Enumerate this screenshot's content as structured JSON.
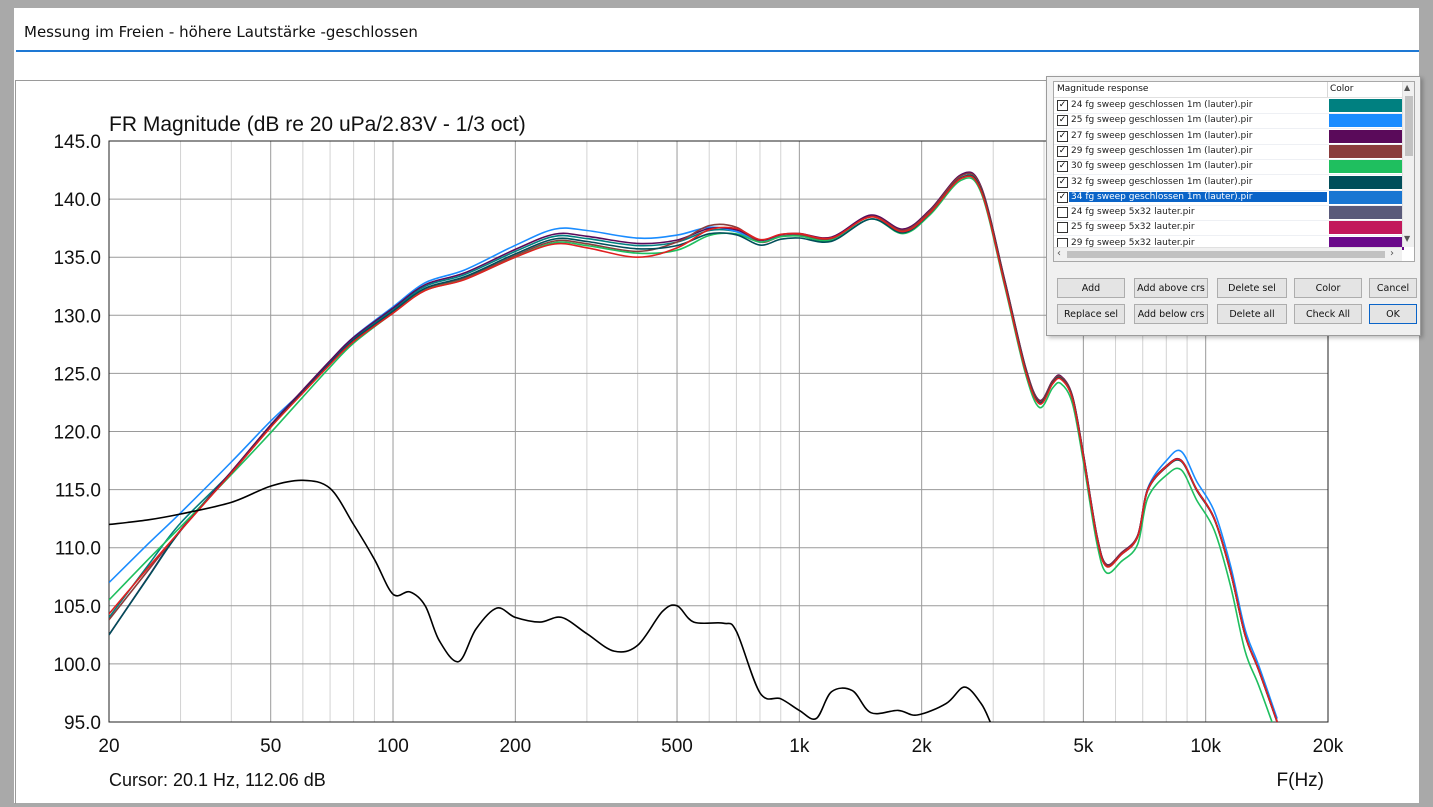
{
  "window": {
    "title": "Messung im Freien - höhere Lautstärke -geschlossen"
  },
  "chart_data": {
    "type": "line",
    "title": "FR Magnitude (dB re 20 uPa/2.83V - 1/3 oct)",
    "xlabel": "F(Hz)",
    "x_scale": "log",
    "xlim": [
      20,
      20000
    ],
    "ylim": [
      95,
      145
    ],
    "yticks": [
      "145.0",
      "140.0",
      "135.0",
      "130.0",
      "125.0",
      "120.0",
      "115.0",
      "110.0",
      "105.0",
      "100.0",
      "95.0"
    ],
    "xticks": [
      {
        "v": 20,
        "label": "20"
      },
      {
        "v": 50,
        "label": "50"
      },
      {
        "v": 100,
        "label": "100"
      },
      {
        "v": 200,
        "label": "200"
      },
      {
        "v": 500,
        "label": "500"
      },
      {
        "v": 1000,
        "label": "1k"
      },
      {
        "v": 2000,
        "label": "2k"
      },
      {
        "v": 5000,
        "label": "5k"
      },
      {
        "v": 10000,
        "label": "10k"
      },
      {
        "v": 20000,
        "label": "20k"
      }
    ],
    "grid": true,
    "cursor_text": "Cursor: 20.1 Hz, 112.06 dB",
    "base_curve": [
      [
        20,
        102.5
      ],
      [
        25,
        107.5
      ],
      [
        30,
        111.5
      ],
      [
        40,
        116.5
      ],
      [
        50,
        120.5
      ],
      [
        60,
        123.5
      ],
      [
        70,
        126
      ],
      [
        80,
        128
      ],
      [
        100,
        130.5
      ],
      [
        120,
        132.5
      ],
      [
        150,
        133.5
      ],
      [
        200,
        135.5
      ],
      [
        250,
        136.8
      ],
      [
        300,
        136.6
      ],
      [
        400,
        136
      ],
      [
        500,
        136.3
      ],
      [
        600,
        137.3
      ],
      [
        700,
        137.2
      ],
      [
        800,
        136.3
      ],
      [
        900,
        136.8
      ],
      [
        1000,
        136.9
      ],
      [
        1200,
        136.6
      ],
      [
        1500,
        138.5
      ],
      [
        1800,
        137.3
      ],
      [
        2100,
        139
      ],
      [
        2500,
        142
      ],
      [
        2800,
        141
      ],
      [
        3200,
        133
      ],
      [
        3600,
        125.5
      ],
      [
        3900,
        122.6
      ],
      [
        4200,
        124.3
      ],
      [
        4400,
        124.7
      ],
      [
        4700,
        123
      ],
      [
        5000,
        118
      ],
      [
        5400,
        111
      ],
      [
        5700,
        108.5
      ],
      [
        6200,
        109.5
      ],
      [
        6800,
        111
      ],
      [
        7200,
        115
      ],
      [
        8000,
        117
      ],
      [
        8700,
        117.5
      ],
      [
        9500,
        115
      ],
      [
        10500,
        112.5
      ],
      [
        11500,
        108
      ],
      [
        12500,
        102.5
      ],
      [
        13500,
        99.5
      ],
      [
        15000,
        95
      ]
    ],
    "series": [
      {
        "name": "24 fg sweep geschlossen 1m (lauter).pir",
        "color": "#008080",
        "offsets": [
          [
            20,
            1.5
          ],
          [
            40,
            0
          ],
          [
            20000,
            0
          ]
        ]
      },
      {
        "name": "25 fg sweep geschlossen 1m (lauter).pir",
        "color": "#1a8cff",
        "offsets": [
          [
            20,
            4.5
          ],
          [
            30,
            1.5
          ],
          [
            60,
            0
          ],
          [
            300,
            0.7
          ],
          [
            500,
            0.6
          ],
          [
            700,
            0
          ],
          [
            3000,
            0
          ],
          [
            7000,
            0
          ],
          [
            8700,
            0.8
          ],
          [
            12000,
            0.5
          ],
          [
            20000,
            0
          ]
        ]
      },
      {
        "name": "27 fg sweep geschlossen 1m (lauter).pir",
        "color": "#5a0a5a",
        "offsets": [
          [
            20,
            0
          ],
          [
            300,
            0.2
          ],
          [
            20000,
            0
          ]
        ]
      },
      {
        "name": "29 fg sweep geschlossen 1m (lauter).pir",
        "color": "#8a3c3c",
        "offsets": [
          [
            20,
            1.3
          ],
          [
            30,
            0
          ],
          [
            400,
            -0.5
          ],
          [
            650,
            0.6
          ],
          [
            800,
            0
          ],
          [
            20000,
            0
          ]
        ]
      },
      {
        "name": "30 fg sweep geschlossen 1m (lauter).pir",
        "color": "#1fbf5f",
        "offsets": [
          [
            20,
            3
          ],
          [
            30,
            0.3
          ],
          [
            50,
            -0.6
          ],
          [
            100,
            -0.3
          ],
          [
            300,
            -0.6
          ],
          [
            500,
            -0.7
          ],
          [
            800,
            0
          ],
          [
            8700,
            -0.8
          ],
          [
            10500,
            -1
          ],
          [
            12500,
            -1.4
          ],
          [
            20000,
            -1
          ]
        ]
      },
      {
        "name": "32 fg sweep geschlossen 1m (lauter).pir",
        "color": "#004e5a",
        "offsets": [
          [
            20,
            0
          ],
          [
            500,
            -0.3
          ],
          [
            20000,
            0
          ]
        ]
      },
      {
        "name": "34 fg sweep geschlossen 1m (lauter).pir",
        "color": "#e02020",
        "offsets": [
          [
            20,
            1.8
          ],
          [
            30,
            0
          ],
          [
            200,
            -0.5
          ],
          [
            400,
            -1
          ],
          [
            500,
            -0.5
          ],
          [
            650,
            0.3
          ],
          [
            3000,
            -0.3
          ],
          [
            8700,
            0
          ],
          [
            20000,
            0
          ]
        ]
      },
      {
        "name": "black",
        "color": "#000000",
        "points": [
          [
            20,
            112
          ],
          [
            25,
            112.4
          ],
          [
            30,
            112.9
          ],
          [
            40,
            113.9
          ],
          [
            50,
            115.3
          ],
          [
            60,
            115.8
          ],
          [
            70,
            115.1
          ],
          [
            80,
            112
          ],
          [
            90,
            109
          ],
          [
            100,
            106
          ],
          [
            110,
            106.2
          ],
          [
            120,
            105
          ],
          [
            130,
            102
          ],
          [
            145,
            100.2
          ],
          [
            160,
            103
          ],
          [
            180,
            104.8
          ],
          [
            200,
            104
          ],
          [
            230,
            103.6
          ],
          [
            260,
            104
          ],
          [
            300,
            102.6
          ],
          [
            350,
            101.1
          ],
          [
            400,
            101.6
          ],
          [
            460,
            104.5
          ],
          [
            500,
            105
          ],
          [
            550,
            103.6
          ],
          [
            650,
            103.5
          ],
          [
            700,
            102.8
          ],
          [
            800,
            97.5
          ],
          [
            900,
            97
          ],
          [
            1000,
            96
          ],
          [
            1100,
            95.3
          ],
          [
            1200,
            97.6
          ],
          [
            1350,
            97.7
          ],
          [
            1500,
            95.8
          ],
          [
            1750,
            96
          ],
          [
            1950,
            95.6
          ],
          [
            2300,
            96.6
          ],
          [
            2550,
            98
          ],
          [
            2800,
            96.6
          ],
          [
            2950,
            95
          ]
        ]
      }
    ]
  },
  "dialog": {
    "col_name": "Magnitude response",
    "col_color": "Color",
    "rows": [
      {
        "label": "24 fg sweep geschlossen 1m (lauter).pir",
        "checked": true,
        "color": "#008080"
      },
      {
        "label": "25 fg sweep geschlossen 1m (lauter).pir",
        "checked": true,
        "color": "#1a8cff"
      },
      {
        "label": "27 fg sweep geschlossen 1m (lauter).pir",
        "checked": true,
        "color": "#5a0a5a"
      },
      {
        "label": "29 fg sweep geschlossen 1m (lauter).pir",
        "checked": true,
        "color": "#8a3c3c"
      },
      {
        "label": "30 fg sweep geschlossen 1m (lauter).pir",
        "checked": true,
        "color": "#1fbf5f"
      },
      {
        "label": "32 fg sweep geschlossen 1m (lauter).pir",
        "checked": true,
        "color": "#004e5a"
      },
      {
        "label": "34 fg sweep geschlossen 1m (lauter).pir",
        "checked": true,
        "color": "#1976d2",
        "selected": true
      },
      {
        "label": "24 fg sweep 5x32 lauter.pir",
        "checked": false,
        "color": "#5a5a7a"
      },
      {
        "label": "25 fg sweep 5x32 lauter.pir",
        "checked": false,
        "color": "#c2185b"
      },
      {
        "label": "29 fg sweep 5x32 lauter.pir",
        "checked": false,
        "color": "#6a0a8a"
      }
    ],
    "buttons": {
      "add": "Add",
      "add_above": "Add above crs",
      "delete_sel": "Delete sel",
      "color": "Color",
      "cancel": "Cancel",
      "replace_sel": "Replace sel",
      "add_below": "Add below crs",
      "delete_all": "Delete all",
      "check_all": "Check All",
      "ok": "OK"
    }
  }
}
